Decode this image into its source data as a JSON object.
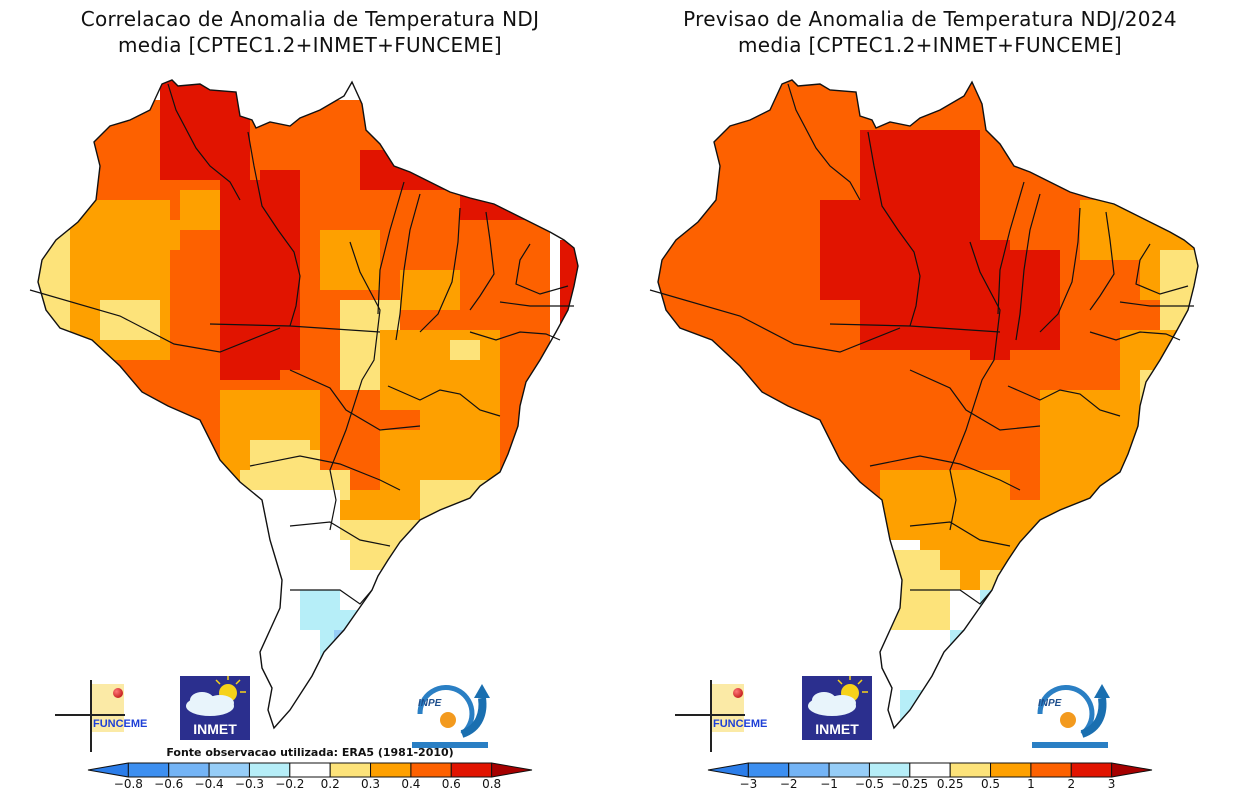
{
  "panels": [
    {
      "id": "correlation",
      "title_line1": "Correlacao de Anomalia de Temperatura NDJ",
      "title_line2": "media [CPTEC1.2+INMET+FUNCEME]",
      "source_note": "Fonte observacao utilizada: ERA5 (1981-2010)",
      "colorbar": {
        "levels": [
          "-0.8",
          "-0.6",
          "-0.4",
          "-0.3",
          "-0.2",
          "0.2",
          "0.3",
          "0.4",
          "0.6",
          "0.8"
        ],
        "colors": [
          "#2b7de9",
          "#3d8ff0",
          "#74b4f5",
          "#96cdf7",
          "#b6eef8",
          "#ffffff",
          "#fde37a",
          "#fea000",
          "#fd6100",
          "#e11400",
          "#a50000"
        ]
      },
      "regions": {
        "north_west_amazonas": "0.4-0.6",
        "roraima": "0.6-0.8",
        "central_para_mato_grosso_border": "0.6-0.8",
        "northern_coast_amapa_maranhao": "0.6-0.8",
        "acre_west": "0.2-0.3",
        "bahia_interior": "0.2-0.3",
        "minas_gerais": "0.3-0.4",
        "mato_grosso_do_sul_south": "-0.2-0.2",
        "parana_santa_catarina": "-0.2-0.2",
        "rio_grande_do_sul": "-0.3 to -0.4"
      }
    },
    {
      "id": "forecast",
      "title_line1": "Previsao de Anomalia de Temperatura NDJ/2024",
      "title_line2": "media [CPTEC1.2+INMET+FUNCEME]",
      "source_note": "",
      "colorbar": {
        "levels": [
          "-3",
          "-2",
          "-1",
          "-0.5",
          "-0.25",
          "0.25",
          "0.5",
          "1",
          "2",
          "3"
        ],
        "colors": [
          "#2b7de9",
          "#3d8ff0",
          "#74b4f5",
          "#96cdf7",
          "#b6eef8",
          "#ffffff",
          "#fde37a",
          "#fea000",
          "#fd6100",
          "#e11400",
          "#a50000"
        ]
      },
      "regions": {
        "amazonas_acre_rondonia": "1-2",
        "para_tocantins_maranhao": "2-3",
        "mato_grosso_goias": "1-2",
        "minas_gerais_sao_paulo": "0.5-1",
        "northeast_coast": "0.25-0.5",
        "parana": "0.25-0.5",
        "rio_grande_do_sul_santa_catarina_coast": "-0.25 to -1"
      }
    }
  ],
  "logos": {
    "funceme": "FUNCEME",
    "inmet": "INMET",
    "inpe": "INPE"
  }
}
